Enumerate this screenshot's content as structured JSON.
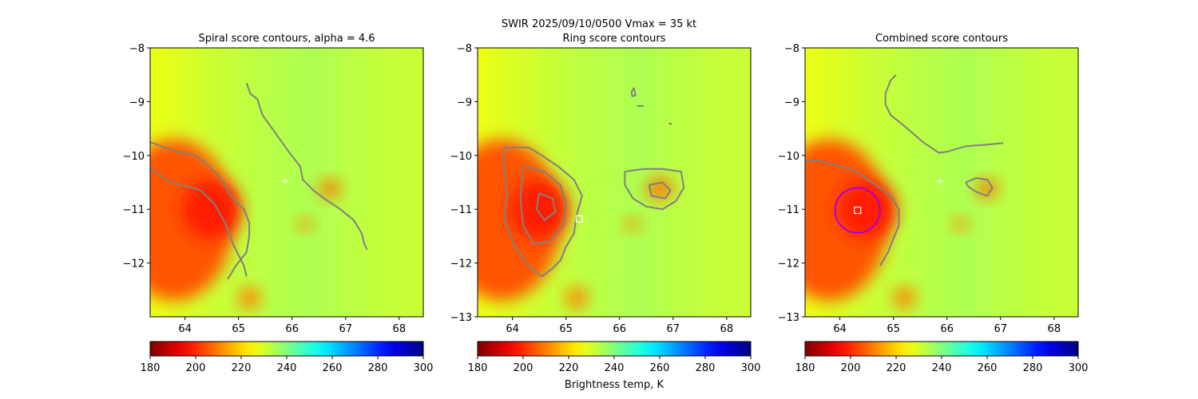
{
  "figure": {
    "suptitle": "SWIR  2025/09/10/0500    Vmax = 35 kt",
    "colorbar_label": "Brightness temp, K"
  },
  "chart_data": [
    {
      "type": "heatmap",
      "title": "Spiral score contours, alpha =  4.6",
      "xlim": [
        63.35,
        68.45
      ],
      "ylim": [
        -13.0,
        -8.0
      ],
      "xticks": [
        64,
        65,
        66,
        67,
        68
      ],
      "xticklabels": [
        "64",
        "65",
        "66",
        "67",
        "68"
      ],
      "yticks": [
        -8,
        -9,
        -10,
        -11,
        -12
      ],
      "yticklabels": [
        "−8",
        "−9",
        "−10",
        "−11",
        "−12"
      ],
      "colorbar": {
        "min": 180,
        "max": 300,
        "ticks": [
          "180",
          "200",
          "220",
          "240",
          "260",
          "280",
          "300"
        ],
        "colormap": "jet_r"
      },
      "contours": [
        {
          "color": "#808080",
          "points": [
            [
              65.15,
              -8.65
            ],
            [
              65.22,
              -8.85
            ],
            [
              65.35,
              -8.95
            ],
            [
              65.45,
              -9.25
            ],
            [
              65.7,
              -9.6
            ],
            [
              65.95,
              -9.95
            ],
            [
              66.15,
              -10.2
            ],
            [
              66.2,
              -10.45
            ],
            [
              66.4,
              -10.65
            ],
            [
              66.6,
              -10.8
            ],
            [
              66.9,
              -11.0
            ],
            [
              67.15,
              -11.2
            ],
            [
              67.3,
              -11.45
            ],
            [
              67.35,
              -11.65
            ],
            [
              67.4,
              -11.75
            ]
          ]
        },
        {
          "color": "#808080",
          "points": [
            [
              63.35,
              -10.25
            ],
            [
              63.45,
              -10.3
            ],
            [
              63.7,
              -10.5
            ],
            [
              63.95,
              -10.55
            ],
            [
              64.3,
              -10.65
            ],
            [
              64.55,
              -10.9
            ],
            [
              64.75,
              -11.25
            ],
            [
              64.9,
              -11.65
            ],
            [
              65.1,
              -12.05
            ],
            [
              65.15,
              -12.25
            ]
          ]
        },
        {
          "color": "#808080",
          "points": [
            [
              63.35,
              -9.75
            ],
            [
              63.9,
              -9.95
            ],
            [
              64.2,
              -10.0
            ],
            [
              64.4,
              -10.15
            ],
            [
              64.65,
              -10.4
            ],
            [
              64.85,
              -10.75
            ],
            [
              65.1,
              -11.0
            ],
            [
              65.2,
              -11.25
            ],
            [
              65.2,
              -11.5
            ],
            [
              65.15,
              -11.8
            ],
            [
              64.95,
              -12.05
            ],
            [
              64.8,
              -12.3
            ]
          ]
        }
      ],
      "center_marker": {
        "shape": "plus",
        "x": 65.87,
        "y": -10.48,
        "color": "#ffffff"
      },
      "cloud_patches": [
        {
          "cx": 63.8,
          "cy": -11.2,
          "rx": 1.1,
          "ry": 1.5,
          "tb": 205
        },
        {
          "cx": 64.5,
          "cy": -11.0,
          "rx": 0.55,
          "ry": 0.55,
          "tb": 198
        },
        {
          "cx": 66.7,
          "cy": -10.62,
          "rx": 0.2,
          "ry": 0.17,
          "tb": 208
        },
        {
          "cx": 66.25,
          "cy": -11.28,
          "rx": 0.15,
          "ry": 0.12,
          "tb": 212
        },
        {
          "cx": 65.2,
          "cy": -12.65,
          "rx": 0.2,
          "ry": 0.2,
          "tb": 210
        }
      ]
    },
    {
      "type": "heatmap",
      "title": "Ring score contours",
      "xlim": [
        63.35,
        68.45
      ],
      "ylim": [
        -13.0,
        -8.0
      ],
      "xticks": [
        64,
        65,
        66,
        67,
        68
      ],
      "xticklabels": [
        "64",
        "65",
        "66",
        "67",
        "68"
      ],
      "yticks": [
        -8,
        -9,
        -10,
        -11,
        -12,
        -13
      ],
      "yticklabels": [
        "−8",
        "−9",
        "−10",
        "−11",
        "−12",
        "−13"
      ],
      "colorbar": {
        "min": 180,
        "max": 300,
        "ticks": [
          "180",
          "200",
          "220",
          "240",
          "260",
          "280",
          "300"
        ],
        "colormap": "jet_r"
      },
      "contours": [
        {
          "color": "#808080",
          "points": [
            [
              63.85,
              -9.85
            ],
            [
              64.3,
              -9.85
            ],
            [
              64.55,
              -10.0
            ],
            [
              64.85,
              -10.2
            ],
            [
              65.15,
              -10.45
            ],
            [
              65.3,
              -10.75
            ],
            [
              65.2,
              -11.1
            ],
            [
              65.15,
              -11.45
            ],
            [
              65.0,
              -11.7
            ],
            [
              64.9,
              -11.95
            ],
            [
              64.75,
              -12.1
            ],
            [
              64.55,
              -12.25
            ],
            [
              64.3,
              -12.05
            ],
            [
              64.05,
              -11.7
            ],
            [
              63.85,
              -11.2
            ],
            [
              63.9,
              -10.7
            ],
            [
              63.85,
              -10.25
            ],
            [
              63.85,
              -9.85
            ]
          ]
        },
        {
          "color": "#808080",
          "points": [
            [
              64.2,
              -10.2
            ],
            [
              64.6,
              -10.3
            ],
            [
              64.9,
              -10.55
            ],
            [
              65.0,
              -10.9
            ],
            [
              64.95,
              -11.3
            ],
            [
              64.7,
              -11.6
            ],
            [
              64.4,
              -11.65
            ],
            [
              64.2,
              -11.3
            ],
            [
              64.15,
              -10.8
            ],
            [
              64.2,
              -10.2
            ]
          ]
        },
        {
          "color": "#808080",
          "points": [
            [
              64.5,
              -10.7
            ],
            [
              64.75,
              -10.8
            ],
            [
              64.8,
              -11.05
            ],
            [
              64.6,
              -11.2
            ],
            [
              64.45,
              -11.0
            ],
            [
              64.5,
              -10.7
            ]
          ]
        },
        {
          "color": "#808080",
          "points": [
            [
              66.1,
              -10.3
            ],
            [
              66.45,
              -10.25
            ],
            [
              66.8,
              -10.25
            ],
            [
              67.15,
              -10.3
            ],
            [
              67.2,
              -10.6
            ],
            [
              67.05,
              -10.85
            ],
            [
              66.8,
              -11.0
            ],
            [
              66.5,
              -10.95
            ],
            [
              66.25,
              -10.8
            ],
            [
              66.1,
              -10.55
            ],
            [
              66.1,
              -10.3
            ]
          ]
        },
        {
          "color": "#808080",
          "points": [
            [
              66.55,
              -10.55
            ],
            [
              66.8,
              -10.5
            ],
            [
              66.95,
              -10.65
            ],
            [
              66.85,
              -10.8
            ],
            [
              66.6,
              -10.75
            ],
            [
              66.55,
              -10.55
            ]
          ]
        },
        {
          "color": "#808080",
          "points": [
            [
              66.22,
              -8.82
            ],
            [
              66.27,
              -8.75
            ],
            [
              66.3,
              -8.88
            ],
            [
              66.24,
              -8.9
            ],
            [
              66.22,
              -8.82
            ]
          ]
        },
        {
          "color": "#808080",
          "points": [
            [
              66.33,
              -9.08
            ],
            [
              66.45,
              -9.08
            ]
          ]
        },
        {
          "color": "#808080",
          "points": [
            [
              66.92,
              -9.4
            ],
            [
              66.98,
              -9.42
            ]
          ]
        }
      ],
      "center_marker": {
        "shape": "square",
        "x": 65.25,
        "y": -11.18,
        "color": "#ffffff"
      },
      "cloud_patches": [
        {
          "cx": 63.8,
          "cy": -11.2,
          "rx": 1.1,
          "ry": 1.5,
          "tb": 205
        },
        {
          "cx": 64.5,
          "cy": -11.0,
          "rx": 0.55,
          "ry": 0.55,
          "tb": 198
        },
        {
          "cx": 66.75,
          "cy": -10.62,
          "rx": 0.25,
          "ry": 0.2,
          "tb": 208
        },
        {
          "cx": 66.25,
          "cy": -11.28,
          "rx": 0.15,
          "ry": 0.12,
          "tb": 212
        },
        {
          "cx": 65.2,
          "cy": -12.65,
          "rx": 0.2,
          "ry": 0.2,
          "tb": 210
        }
      ]
    },
    {
      "type": "heatmap",
      "title": "Combined score contours",
      "xlim": [
        63.35,
        68.45
      ],
      "ylim": [
        -13.0,
        -8.0
      ],
      "xticks": [
        64,
        65,
        66,
        67,
        68
      ],
      "xticklabels": [
        "64",
        "65",
        "66",
        "67",
        "68"
      ],
      "yticks": [
        -8,
        -9,
        -10,
        -11,
        -12,
        -13
      ],
      "yticklabels": [
        "−8",
        "−9",
        "−10",
        "−11",
        "−12",
        "−13"
      ],
      "colorbar": {
        "min": 180,
        "max": 300,
        "ticks": [
          "180",
          "200",
          "220",
          "240",
          "260",
          "280",
          "300"
        ],
        "colormap": "jet_r"
      },
      "contours": [
        {
          "color": "#808080",
          "points": [
            [
              65.05,
              -8.5
            ],
            [
              64.95,
              -8.6
            ],
            [
              64.85,
              -8.85
            ],
            [
              64.85,
              -9.05
            ],
            [
              64.95,
              -9.25
            ],
            [
              65.2,
              -9.45
            ],
            [
              65.55,
              -9.75
            ],
            [
              65.85,
              -9.95
            ],
            [
              66.0,
              -9.93
            ],
            [
              66.35,
              -9.83
            ],
            [
              66.75,
              -9.8
            ],
            [
              67.05,
              -9.77
            ]
          ]
        },
        {
          "color": "#808080",
          "points": [
            [
              63.35,
              -10.1
            ],
            [
              63.6,
              -10.1
            ],
            [
              64.0,
              -10.2
            ],
            [
              64.3,
              -10.3
            ],
            [
              64.6,
              -10.5
            ],
            [
              64.95,
              -10.75
            ],
            [
              65.1,
              -11.0
            ],
            [
              65.1,
              -11.3
            ],
            [
              65.0,
              -11.55
            ],
            [
              64.9,
              -11.8
            ],
            [
              64.75,
              -12.05
            ]
          ]
        },
        {
          "color": "#808080",
          "points": [
            [
              66.35,
              -10.5
            ],
            [
              66.55,
              -10.42
            ],
            [
              66.75,
              -10.45
            ],
            [
              66.85,
              -10.6
            ],
            [
              66.75,
              -10.75
            ],
            [
              66.55,
              -10.68
            ],
            [
              66.4,
              -10.58
            ],
            [
              66.35,
              -10.5
            ]
          ]
        }
      ],
      "center_marker": {
        "shape": "plus",
        "x": 65.87,
        "y": -10.48,
        "color": "#ffffff"
      },
      "square_marker": {
        "x": 64.33,
        "y": -11.02,
        "color": "#ffffff"
      },
      "circle": {
        "cx": 64.33,
        "cy": -11.02,
        "r": 0.42,
        "color": "#aa00dd"
      },
      "cloud_patches": [
        {
          "cx": 63.8,
          "cy": -11.2,
          "rx": 1.1,
          "ry": 1.5,
          "tb": 205
        },
        {
          "cx": 64.5,
          "cy": -11.0,
          "rx": 0.55,
          "ry": 0.55,
          "tb": 198
        },
        {
          "cx": 66.75,
          "cy": -10.62,
          "rx": 0.2,
          "ry": 0.17,
          "tb": 208
        },
        {
          "cx": 66.25,
          "cy": -11.28,
          "rx": 0.15,
          "ry": 0.12,
          "tb": 212
        },
        {
          "cx": 65.2,
          "cy": -12.65,
          "rx": 0.2,
          "ry": 0.2,
          "tb": 210
        }
      ]
    }
  ]
}
